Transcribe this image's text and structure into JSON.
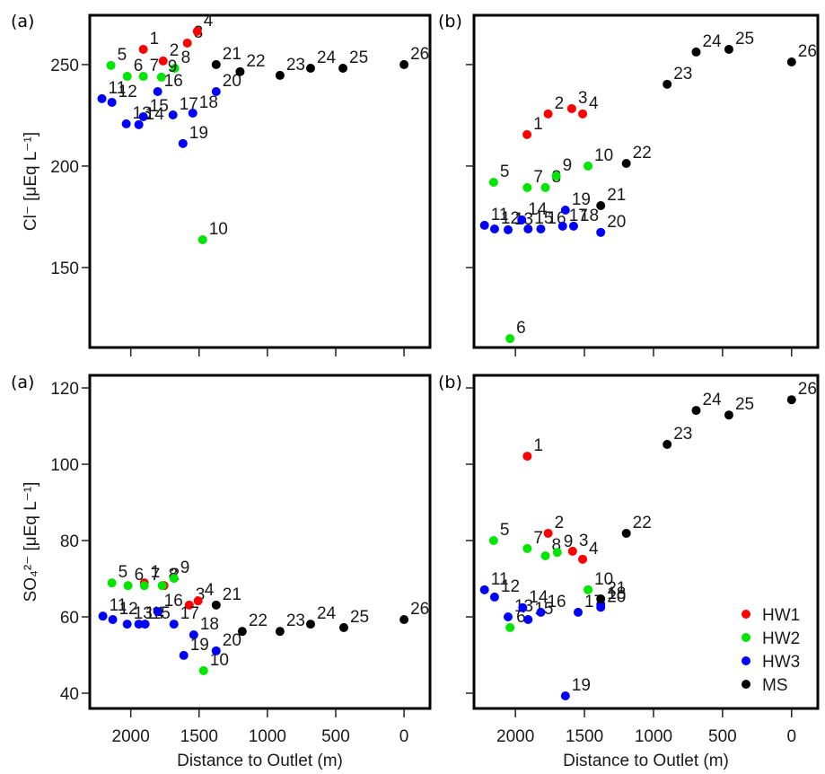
{
  "chart_data": [
    {
      "panel": "(a)",
      "type": "scatter",
      "title": "",
      "xlabel": "",
      "ylabel": "Cl⁻ [μEq L⁻¹]",
      "xlim": [
        2300,
        -190
      ],
      "ylim": [
        110.6,
        274.3
      ],
      "x_ticks": [
        2000,
        1500,
        1000,
        500,
        0
      ],
      "x_tick_labels_visible": false,
      "y_ticks": [
        150,
        200,
        250
      ],
      "grid": false,
      "points": [
        {
          "label": "1",
          "group": "HW1",
          "x": 1908,
          "y": 257.5
        },
        {
          "label": "2",
          "group": "HW1",
          "x": 1763,
          "y": 251.8
        },
        {
          "label": "3",
          "group": "HW1",
          "x": 1586,
          "y": 260.6
        },
        {
          "label": "4",
          "group": "HW1",
          "x": 1513,
          "y": 266.4
        },
        {
          "label": "5",
          "group": "HW2",
          "x": 2145,
          "y": 249.6
        },
        {
          "label": "6",
          "group": "HW2",
          "x": 2026,
          "y": 244.2
        },
        {
          "label": "7",
          "group": "HW2",
          "x": 1908,
          "y": 244.2
        },
        {
          "label": "8",
          "group": "HW2",
          "x": 1678,
          "y": 248.2
        },
        {
          "label": "9",
          "group": "HW2",
          "x": 1776,
          "y": 243.8
        },
        {
          "label": "10",
          "group": "HW2",
          "x": 1474,
          "y": 163.7
        },
        {
          "label": "11",
          "group": "HW3",
          "x": 2211,
          "y": 233.2
        },
        {
          "label": "12",
          "group": "HW3",
          "x": 2138,
          "y": 231.4
        },
        {
          "label": "13",
          "group": "HW3",
          "x": 2033,
          "y": 220.8
        },
        {
          "label": "14",
          "group": "HW3",
          "x": 1941,
          "y": 220.4
        },
        {
          "label": "15",
          "group": "HW3",
          "x": 1908,
          "y": 224.3
        },
        {
          "label": "16",
          "group": "HW3",
          "x": 1803,
          "y": 236.7
        },
        {
          "label": "17",
          "group": "HW3",
          "x": 1691,
          "y": 225.2
        },
        {
          "label": "18",
          "group": "HW3",
          "x": 1546,
          "y": 226.1
        },
        {
          "label": "19",
          "group": "HW3",
          "x": 1618,
          "y": 211.1
        },
        {
          "label": "20",
          "group": "HW3",
          "x": 1375,
          "y": 236.7
        },
        {
          "label": "21",
          "group": "MS",
          "x": 1375,
          "y": 250.0
        },
        {
          "label": "22",
          "group": "MS",
          "x": 1200,
          "y": 246.5
        },
        {
          "label": "23",
          "group": "MS",
          "x": 908,
          "y": 244.7
        },
        {
          "label": "24",
          "group": "MS",
          "x": 684,
          "y": 248.2
        },
        {
          "label": "25",
          "group": "MS",
          "x": 447,
          "y": 248.2
        },
        {
          "label": "26",
          "group": "MS",
          "x": 0,
          "y": 250.0
        }
      ]
    },
    {
      "panel": "(b)",
      "type": "scatter",
      "title": "",
      "xlabel": "",
      "ylabel": "",
      "xlim": [
        2300,
        -190
      ],
      "ylim": [
        110.6,
        274.3
      ],
      "x_ticks": [
        2000,
        1500,
        1000,
        500,
        0
      ],
      "x_tick_labels_visible": false,
      "y_ticks": [
        150,
        200,
        250
      ],
      "y_tick_labels_visible": false,
      "grid": false,
      "points": [
        {
          "label": "1",
          "group": "HW1",
          "x": 1916,
          "y": 215.5
        },
        {
          "label": "2",
          "group": "HW1",
          "x": 1763,
          "y": 225.7
        },
        {
          "label": "3",
          "group": "HW1",
          "x": 1592,
          "y": 228.3
        },
        {
          "label": "4",
          "group": "HW1",
          "x": 1513,
          "y": 225.7
        },
        {
          "label": "5",
          "group": "HW2",
          "x": 2158,
          "y": 192.0
        },
        {
          "label": "6",
          "group": "HW2",
          "x": 2039,
          "y": 115.0
        },
        {
          "label": "7",
          "group": "HW2",
          "x": 1914,
          "y": 189.4
        },
        {
          "label": "8",
          "group": "HW2",
          "x": 1783,
          "y": 189.4
        },
        {
          "label": "9",
          "group": "HW2",
          "x": 1704,
          "y": 195.1
        },
        {
          "label": "10",
          "group": "HW2",
          "x": 1474,
          "y": 200.0
        },
        {
          "label": "11",
          "group": "HW3",
          "x": 2224,
          "y": 170.8
        },
        {
          "label": "12",
          "group": "HW3",
          "x": 2151,
          "y": 169.0
        },
        {
          "label": "13",
          "group": "HW3",
          "x": 2053,
          "y": 168.6
        },
        {
          "label": "14",
          "group": "HW3",
          "x": 1954,
          "y": 173.5
        },
        {
          "label": "15",
          "group": "HW3",
          "x": 1908,
          "y": 169.0
        },
        {
          "label": "16",
          "group": "HW3",
          "x": 1816,
          "y": 169.0
        },
        {
          "label": "17",
          "group": "HW3",
          "x": 1658,
          "y": 170.4
        },
        {
          "label": "18",
          "group": "HW3",
          "x": 1579,
          "y": 170.4
        },
        {
          "label": "19",
          "group": "HW3",
          "x": 1638,
          "y": 178.3
        },
        {
          "label": "20",
          "group": "HW3",
          "x": 1382,
          "y": 167.3
        },
        {
          "label": "21",
          "group": "MS",
          "x": 1382,
          "y": 180.5
        },
        {
          "label": "22",
          "group": "MS",
          "x": 1197,
          "y": 201.3
        },
        {
          "label": "23",
          "group": "MS",
          "x": 901,
          "y": 240.3
        },
        {
          "label": "24",
          "group": "MS",
          "x": 691,
          "y": 256.2
        },
        {
          "label": "25",
          "group": "MS",
          "x": 454,
          "y": 257.5
        },
        {
          "label": "26",
          "group": "MS",
          "x": 0,
          "y": 251.3
        }
      ]
    },
    {
      "panel": "(a)",
      "type": "scatter",
      "title": "",
      "xlabel": "Distance to Outlet (m)",
      "ylabel": "SO₄²⁻ [μEq L⁻¹]",
      "xlim": [
        2300,
        -190
      ],
      "ylim": [
        36.0,
        123.3
      ],
      "x_ticks": [
        2000,
        1500,
        1000,
        500,
        0
      ],
      "y_ticks": [
        40,
        60,
        80,
        100,
        120
      ],
      "grid": false,
      "points": [
        {
          "label": "1",
          "group": "HW1",
          "x": 1901,
          "y": 68.9
        },
        {
          "label": "2",
          "group": "HW1",
          "x": 1757,
          "y": 68.2
        },
        {
          "label": "3",
          "group": "HW1",
          "x": 1572,
          "y": 63.1
        },
        {
          "label": "4",
          "group": "HW1",
          "x": 1507,
          "y": 64.2
        },
        {
          "label": "5",
          "group": "HW2",
          "x": 2138,
          "y": 68.9
        },
        {
          "label": "6",
          "group": "HW2",
          "x": 2020,
          "y": 68.2
        },
        {
          "label": "7",
          "group": "HW2",
          "x": 1901,
          "y": 68.2
        },
        {
          "label": "8",
          "group": "HW2",
          "x": 1770,
          "y": 68.2
        },
        {
          "label": "9",
          "group": "HW2",
          "x": 1684,
          "y": 70.1
        },
        {
          "label": "10",
          "group": "HW2",
          "x": 1467,
          "y": 45.9
        },
        {
          "label": "11",
          "group": "HW3",
          "x": 2204,
          "y": 60.2
        },
        {
          "label": "12",
          "group": "HW3",
          "x": 2132,
          "y": 59.3
        },
        {
          "label": "13",
          "group": "HW3",
          "x": 2026,
          "y": 58.1
        },
        {
          "label": "14",
          "group": "HW3",
          "x": 1941,
          "y": 58.1
        },
        {
          "label": "15",
          "group": "HW3",
          "x": 1895,
          "y": 58.1
        },
        {
          "label": "16",
          "group": "HW3",
          "x": 1803,
          "y": 61.4
        },
        {
          "label": "17",
          "group": "HW3",
          "x": 1684,
          "y": 58.1
        },
        {
          "label": "18",
          "group": "HW3",
          "x": 1539,
          "y": 55.3
        },
        {
          "label": "19",
          "group": "HW3",
          "x": 1612,
          "y": 49.9
        },
        {
          "label": "20",
          "group": "HW3",
          "x": 1375,
          "y": 51.1
        },
        {
          "label": "21",
          "group": "MS",
          "x": 1375,
          "y": 63.1
        },
        {
          "label": "22",
          "group": "MS",
          "x": 1184,
          "y": 56.2
        },
        {
          "label": "23",
          "group": "MS",
          "x": 908,
          "y": 56.2
        },
        {
          "label": "24",
          "group": "MS",
          "x": 684,
          "y": 58.1
        },
        {
          "label": "25",
          "group": "MS",
          "x": 441,
          "y": 57.2
        },
        {
          "label": "26",
          "group": "MS",
          "x": 0,
          "y": 59.3
        }
      ]
    },
    {
      "panel": "(b)",
      "type": "scatter",
      "title": "",
      "xlabel": "Distance to Outlet (m)",
      "ylabel": "",
      "xlim": [
        2300,
        -190
      ],
      "ylim": [
        36.0,
        123.3
      ],
      "x_ticks": [
        2000,
        1500,
        1000,
        500,
        0
      ],
      "y_ticks": [
        40,
        60,
        80,
        100,
        120
      ],
      "y_tick_labels_visible": false,
      "grid": false,
      "legend": {
        "placement": "bottom-right"
      },
      "points": [
        {
          "label": "1",
          "group": "HW1",
          "x": 1914,
          "y": 102.1
        },
        {
          "label": "2",
          "group": "HW1",
          "x": 1763,
          "y": 81.9
        },
        {
          "label": "3",
          "group": "HW1",
          "x": 1586,
          "y": 77.2
        },
        {
          "label": "4",
          "group": "HW1",
          "x": 1513,
          "y": 75.1
        },
        {
          "label": "5",
          "group": "HW2",
          "x": 2158,
          "y": 80.0
        },
        {
          "label": "6",
          "group": "HW2",
          "x": 2039,
          "y": 57.2
        },
        {
          "label": "7",
          "group": "HW2",
          "x": 1914,
          "y": 77.9
        },
        {
          "label": "8",
          "group": "HW2",
          "x": 1783,
          "y": 76.0
        },
        {
          "label": "9",
          "group": "HW2",
          "x": 1697,
          "y": 76.9
        },
        {
          "label": "10",
          "group": "HW2",
          "x": 1474,
          "y": 67.1
        },
        {
          "label": "11",
          "group": "HW3",
          "x": 2224,
          "y": 67.1
        },
        {
          "label": "12",
          "group": "HW3",
          "x": 2151,
          "y": 65.2
        },
        {
          "label": "13",
          "group": "HW3",
          "x": 2053,
          "y": 60.0
        },
        {
          "label": "14",
          "group": "HW3",
          "x": 1947,
          "y": 62.4
        },
        {
          "label": "15",
          "group": "HW3",
          "x": 1908,
          "y": 59.3
        },
        {
          "label": "16",
          "group": "HW3",
          "x": 1816,
          "y": 61.2
        },
        {
          "label": "17",
          "group": "HW3",
          "x": 1546,
          "y": 61.2
        },
        {
          "label": "18",
          "group": "HW3",
          "x": 1382,
          "y": 63.3
        },
        {
          "label": "19",
          "group": "HW3",
          "x": 1638,
          "y": 39.3
        },
        {
          "label": "20",
          "group": "HW3",
          "x": 1382,
          "y": 62.5
        },
        {
          "label": "21",
          "group": "MS",
          "x": 1382,
          "y": 64.7
        },
        {
          "label": "22",
          "group": "MS",
          "x": 1197,
          "y": 81.9
        },
        {
          "label": "23",
          "group": "MS",
          "x": 901,
          "y": 105.2
        },
        {
          "label": "24",
          "group": "MS",
          "x": 691,
          "y": 114.1
        },
        {
          "label": "25",
          "group": "MS",
          "x": 454,
          "y": 112.9
        },
        {
          "label": "26",
          "group": "MS",
          "x": 0,
          "y": 116.9
        }
      ]
    }
  ],
  "legend": [
    {
      "name": "HW1",
      "color": "#ff0000"
    },
    {
      "name": "HW2",
      "color": "#00e600"
    },
    {
      "name": "HW3",
      "color": "#0000ff"
    },
    {
      "name": "MS",
      "color": "#000000"
    }
  ],
  "group_colors": {
    "HW1": "#ff0000",
    "HW2": "#00e600",
    "HW3": "#0000ff",
    "MS": "#000000"
  }
}
